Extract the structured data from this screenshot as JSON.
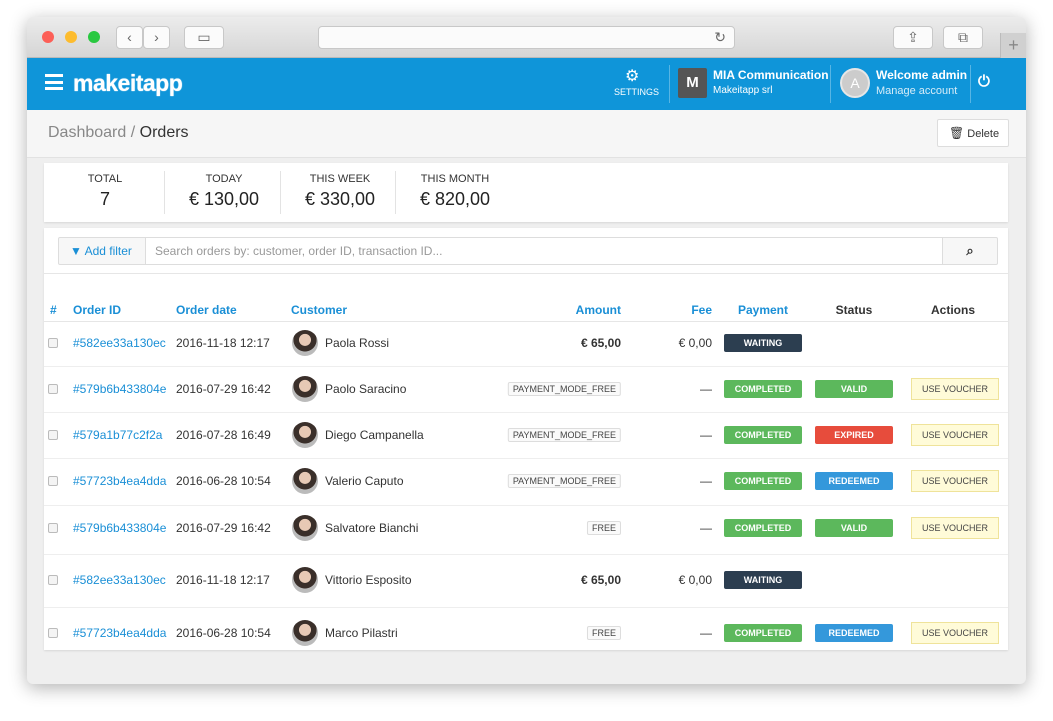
{
  "header": {
    "logo": "makeitapp",
    "settings": "SETTINGS",
    "company_initial": "M",
    "company_name": "MIA Communication",
    "company_sub": "Makeitapp srl",
    "user_initial": "A",
    "welcome": "Welcome admin",
    "manage": "Manage account"
  },
  "breadcrumb": {
    "items": [
      "Dashboard",
      "Orders"
    ],
    "separator": "/",
    "delete": "Delete"
  },
  "stats": [
    {
      "label": "TOTAL",
      "value": "7"
    },
    {
      "label": "TODAY",
      "value": "€ 130,00"
    },
    {
      "label": "THIS WEEK",
      "value": "€ 330,00"
    },
    {
      "label": "THIS MONTH",
      "value": "€ 820,00"
    }
  ],
  "filter": {
    "button": "Add filter",
    "placeholder": "Search orders by: customer, order ID, transaction ID..."
  },
  "table": {
    "columns": [
      "#",
      "Order ID",
      "Order date",
      "Customer",
      "Amount",
      "Fee",
      "Payment",
      "Status",
      "Actions"
    ],
    "rows": [
      {
        "order_id": "#582ee33a130ec",
        "date": "2016-11-18 12:17",
        "customer": "Paola Rossi",
        "amount": "€ 65,00",
        "fee": "€ 0,00",
        "payment": {
          "text": "WAITING",
          "color": "#2c3e50"
        }
      },
      {
        "order_id": "#579b6b433804e",
        "date": "2016-07-29 16:42",
        "customer": "Paolo Saracino",
        "mode": "PAYMENT_MODE_FREE",
        "fee": "—",
        "payment": {
          "text": "COMPLETED",
          "color": "#5cb85c"
        },
        "status": {
          "text": "VALID",
          "color": "#5cb85c"
        },
        "action": "USE VOUCHER"
      },
      {
        "order_id": "#579a1b77c2f2a",
        "date": "2016-07-28 16:49",
        "customer": "Diego Campanella",
        "mode": "PAYMENT_MODE_FREE",
        "fee": "—",
        "payment": {
          "text": "COMPLETED",
          "color": "#5cb85c"
        },
        "status": {
          "text": "EXPIRED",
          "color": "#e74c3c"
        },
        "action": "USE VOUCHER"
      },
      {
        "order_id": "#57723b4ea4dda",
        "date": "2016-06-28 10:54",
        "customer": "Valerio Caputo",
        "mode": "PAYMENT_MODE_FREE",
        "fee": "—",
        "payment": {
          "text": "COMPLETED",
          "color": "#5cb85c"
        },
        "status": {
          "text": "REDEEMED",
          "color": "#3498db"
        },
        "action": "USE VOUCHER"
      },
      {
        "order_id": "#579b6b433804e",
        "date": "2016-07-29 16:42",
        "customer": "Salvatore Bianchi",
        "mode": "FREE",
        "fee": "—",
        "payment": {
          "text": "COMPLETED",
          "color": "#5cb85c"
        },
        "status": {
          "text": "VALID",
          "color": "#5cb85c"
        },
        "action": "USE VOUCHER"
      },
      {
        "order_id": "#582ee33a130ec",
        "date": "2016-11-18 12:17",
        "customer": "Vittorio Esposito",
        "amount": "€ 65,00",
        "fee": "€ 0,00",
        "payment": {
          "text": "WAITING",
          "color": "#2c3e50"
        }
      },
      {
        "order_id": "#57723b4ea4dda",
        "date": "2016-06-28 10:54",
        "customer": "Marco Pilastri",
        "mode": "FREE",
        "fee": "—",
        "payment": {
          "text": "COMPLETED",
          "color": "#5cb85c"
        },
        "status": {
          "text": "REDEEMED",
          "color": "#3498db"
        },
        "action": "USE VOUCHER"
      }
    ]
  }
}
